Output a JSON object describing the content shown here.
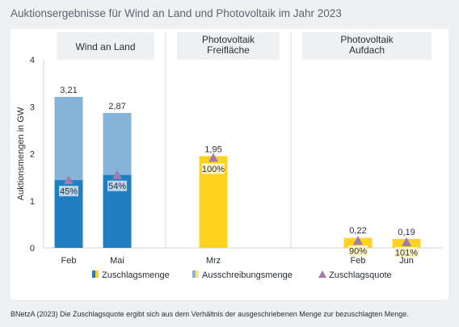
{
  "title": "Auktionsergebnisse für Wind an Land und Photovoltaik im Jahr 2023",
  "footnote": "BNetzA (2023) Die Zuschlagsquote ergibt sich aus dem Verhältnis der ausgeschriebenen Menge zur bezuschlagten Menge.",
  "colors": {
    "wind_award": "#1f7fc1",
    "wind_tender": "#86b4d9",
    "pv_award": "#ffd21f",
    "pv_tender": "#ffe48a",
    "quota_marker": "#9e7cb0"
  },
  "chart_data": {
    "type": "bar",
    "ylabel": "Auktionsmengen in GW",
    "ylim": [
      0,
      4
    ],
    "yticks": [
      "0",
      "1",
      "2",
      "3",
      "4"
    ],
    "groups": [
      {
        "label": "Wind an Land",
        "bars": [
          {
            "x": "Feb",
            "tender": 3.21,
            "tender_label": "3,21",
            "award": 1.44,
            "quota_pct": 45,
            "quota_label": "45%",
            "tech": "wind"
          },
          {
            "x": "Mai",
            "tender": 2.87,
            "tender_label": "2,87",
            "award": 1.55,
            "quota_pct": 54,
            "quota_label": "54%",
            "tech": "wind"
          }
        ]
      },
      {
        "label": "Photovoltaik\nFreifläche",
        "bars": [
          {
            "x": "Mrz",
            "tender": 1.95,
            "tender_label": "1,95",
            "award": 1.95,
            "quota_pct": 100,
            "quota_label": "100%",
            "tech": "pv"
          }
        ]
      },
      {
        "label": "Photovoltaik\nAufdach",
        "bars": [
          {
            "x": "Feb",
            "tender": 0.22,
            "tender_label": "0,22",
            "award": 0.2,
            "quota_pct": 90,
            "quota_label": "90%",
            "tech": "pv"
          },
          {
            "x": "Jun",
            "tender": 0.19,
            "tender_label": "0,19",
            "award": 0.19,
            "quota_pct": 101,
            "quota_label": "101%",
            "tech": "pv"
          }
        ]
      }
    ],
    "legend": [
      {
        "label": "Zuschlagsmenge",
        "kind": "award"
      },
      {
        "label": "Ausschreibungsmenge",
        "kind": "tender"
      },
      {
        "label": "Zuschlagsquote",
        "kind": "quota"
      }
    ]
  }
}
